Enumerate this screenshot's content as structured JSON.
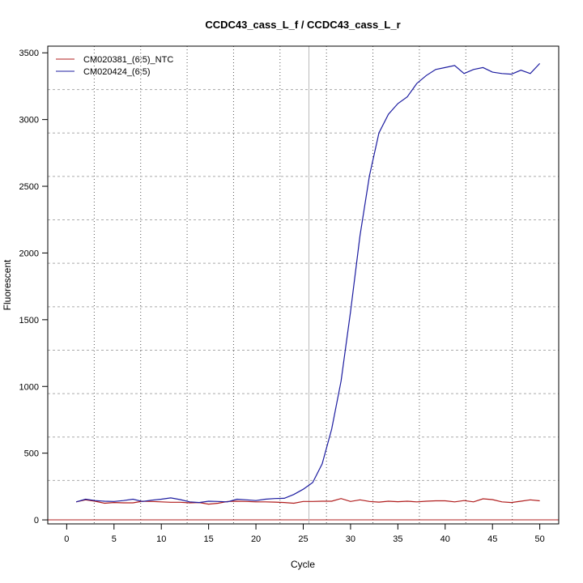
{
  "chart_data": {
    "type": "line",
    "title": "CCDC43_cass_L_f / CCDC43_cass_L_r",
    "xlabel": "Cycle",
    "ylabel": "Fluorescent",
    "xlim": [
      -2,
      52
    ],
    "ylim": [
      -30,
      3550
    ],
    "xticks": [
      0,
      5,
      10,
      15,
      20,
      25,
      30,
      35,
      40,
      45,
      50
    ],
    "yticks": [
      0,
      500,
      1000,
      1500,
      2000,
      2500,
      3000,
      3500
    ],
    "grid": true,
    "legend_position": "top-left",
    "threshold_cycle": 25.6,
    "baseline_value": 0,
    "colors": {
      "threshold": "#66e8f0",
      "baseline": "#b22222"
    },
    "x": [
      1,
      2,
      3,
      4,
      5,
      6,
      7,
      8,
      9,
      10,
      11,
      12,
      13,
      14,
      15,
      16,
      17,
      18,
      19,
      20,
      21,
      22,
      23,
      24,
      25,
      26,
      27,
      28,
      29,
      30,
      31,
      32,
      33,
      34,
      35,
      36,
      37,
      38,
      39,
      40,
      41,
      42,
      43,
      44,
      45,
      46,
      47,
      48,
      49,
      50
    ],
    "series": [
      {
        "name": "CM020381_(6:5)_NTC",
        "color": "#b01c1c",
        "values": [
          135,
          150,
          140,
          125,
          130,
          128,
          128,
          140,
          138,
          135,
          132,
          132,
          128,
          130,
          118,
          125,
          138,
          140,
          138,
          135,
          135,
          133,
          130,
          125,
          138,
          138,
          140,
          140,
          160,
          138,
          150,
          138,
          133,
          140,
          136,
          140,
          135,
          140,
          143,
          143,
          135,
          145,
          135,
          158,
          152,
          135,
          130,
          140,
          150,
          143
        ]
      },
      {
        "name": "CM020424_(6:5)",
        "color": "#1c1ca0",
        "values": [
          135,
          155,
          145,
          140,
          138,
          145,
          155,
          138,
          148,
          155,
          165,
          152,
          135,
          130,
          140,
          138,
          135,
          155,
          150,
          145,
          155,
          160,
          162,
          190,
          230,
          280,
          420,
          680,
          1040,
          1560,
          2130,
          2580,
          2900,
          3040,
          3120,
          3170,
          3270,
          3330,
          3375,
          3390,
          3405,
          3345,
          3375,
          3390,
          3355,
          3345,
          3340,
          3370,
          3345,
          3420
        ]
      }
    ]
  }
}
